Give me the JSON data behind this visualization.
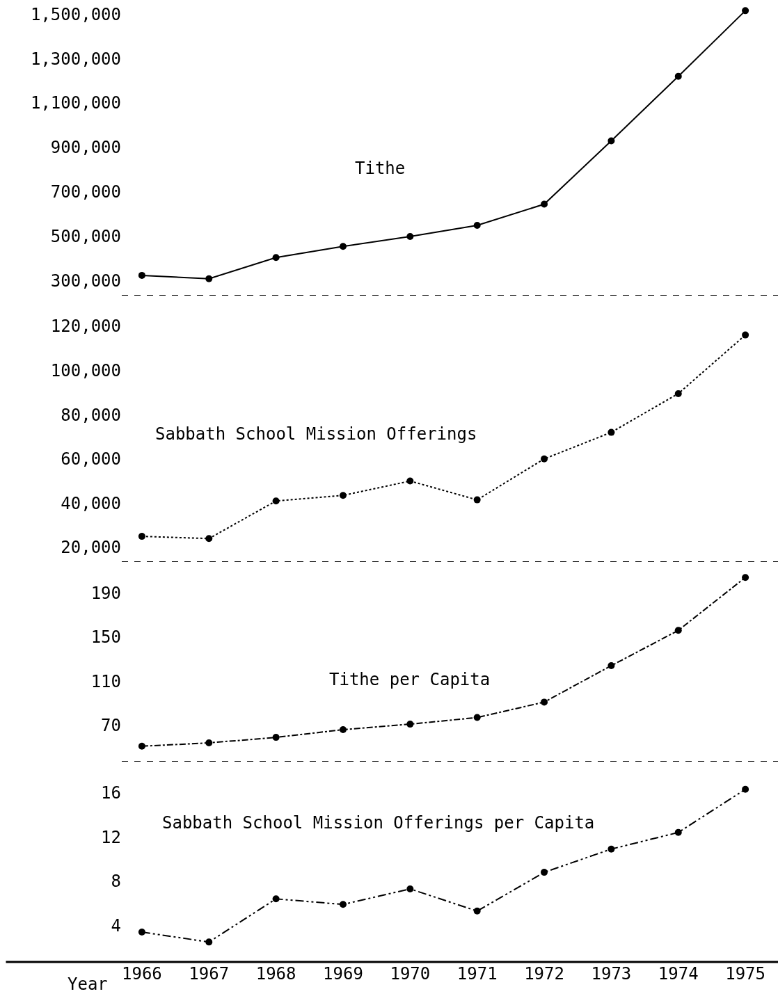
{
  "chart_data": [
    {
      "type": "line",
      "categories": [
        "1966",
        "1967",
        "1968",
        "1969",
        "1970",
        "1971",
        "1972",
        "1973",
        "1974",
        "1975"
      ],
      "series": [
        {
          "name": "Tithe",
          "color": "#000000",
          "line_style": "solid",
          "values": [
            325000,
            310000,
            405000,
            455000,
            500000,
            550000,
            645000,
            930000,
            1220000,
            1515000
          ]
        }
      ],
      "ylim": [
        234000,
        1563000
      ],
      "yticks": [
        {
          "value": 300000,
          "label": "300,000"
        },
        {
          "value": 500000,
          "label": "500,000"
        },
        {
          "value": 700000,
          "label": "700,000"
        },
        {
          "value": 900000,
          "label": "900,000"
        },
        {
          "value": 1100000,
          "label": "1,100,000"
        },
        {
          "value": 1300000,
          "label": "1,300,000"
        },
        {
          "value": 1500000,
          "label": "1,500,000"
        }
      ],
      "marker": "circle",
      "grid": false,
      "legend": false,
      "tick_labels": "y"
    },
    {
      "type": "line",
      "categories": [
        "1966",
        "1967",
        "1968",
        "1969",
        "1970",
        "1971",
        "1972",
        "1973",
        "1974",
        "1975"
      ],
      "series": [
        {
          "name": "Sabbath School Mission Offerings",
          "color": "#000000",
          "line_style": "dotted",
          "values": [
            25000,
            24000,
            41000,
            43500,
            50000,
            41500,
            60000,
            72000,
            89500,
            116000
          ]
        }
      ],
      "ylim": [
        13400,
        133800
      ],
      "yticks": [
        {
          "value": 20000,
          "label": "20,000"
        },
        {
          "value": 40000,
          "label": "40,000"
        },
        {
          "value": 60000,
          "label": "60,000"
        },
        {
          "value": 80000,
          "label": "80,000"
        },
        {
          "value": 100000,
          "label": "100,000"
        },
        {
          "value": 120000,
          "label": "120,000"
        }
      ],
      "marker": "circle",
      "grid": false,
      "legend": false,
      "tick_labels": "y"
    },
    {
      "type": "line",
      "categories": [
        "1966",
        "1967",
        "1968",
        "1969",
        "1970",
        "1971",
        "1972",
        "1973",
        "1974",
        "1975"
      ],
      "series": [
        {
          "name": "Tithe per Capita",
          "color": "#000000",
          "line_style": "dashdot",
          "values": [
            51,
            54,
            59,
            66,
            71,
            77,
            91,
            124,
            156,
            204
          ]
        }
      ],
      "ylim": [
        37,
        218
      ],
      "yticks": [
        70,
        110,
        150,
        190
      ],
      "marker": "circle",
      "grid": false,
      "legend": false,
      "tick_labels": "y"
    },
    {
      "type": "line",
      "xlabel": "Year",
      "categories": [
        "1966",
        "1967",
        "1968",
        "1969",
        "1970",
        "1971",
        "1972",
        "1973",
        "1974",
        "1975"
      ],
      "series": [
        {
          "name": "Sabbath School Mission Offerings per Capita",
          "color": "#000000",
          "line_style": "dashdotdot",
          "values": [
            3.4,
            2.5,
            6.4,
            5.9,
            7.3,
            5.3,
            8.8,
            10.9,
            12.4,
            16.3
          ]
        }
      ],
      "ylim": [
        0.7,
        18.8
      ],
      "yticks": [
        4,
        8,
        12,
        16
      ],
      "marker": "circle",
      "grid": false,
      "legend": false
    }
  ]
}
